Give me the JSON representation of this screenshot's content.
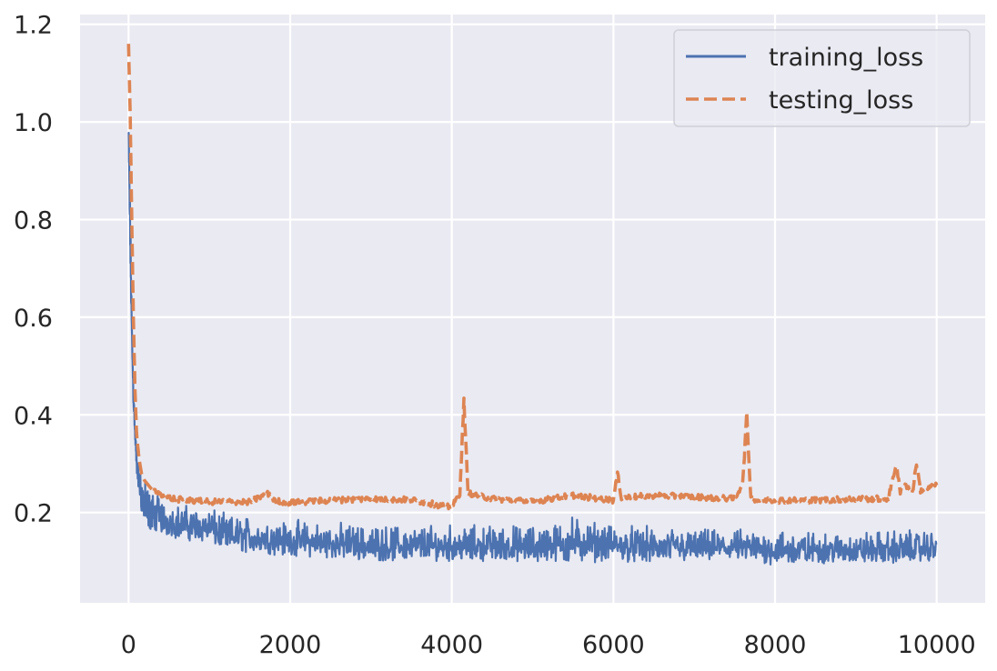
{
  "chart_data": {
    "type": "line",
    "title": "",
    "xlabel": "",
    "ylabel": "",
    "xlim": [
      -600,
      10600
    ],
    "ylim": [
      0.015,
      1.22
    ],
    "x_ticks": [
      0,
      2000,
      4000,
      6000,
      8000,
      10000
    ],
    "x_tick_labels": [
      "0",
      "2000",
      "4000",
      "6000",
      "8000",
      "10000"
    ],
    "y_ticks": [
      0.2,
      0.4,
      0.6,
      0.8,
      1.0,
      1.2
    ],
    "y_tick_labels": [
      "0.2",
      "0.4",
      "0.6",
      "0.8",
      "1.0",
      "1.2"
    ],
    "grid": true,
    "legend_placement": "top-right",
    "background_color": "#eaeaf2",
    "grid_color": "#ffffff",
    "series": [
      {
        "name": "training_loss",
        "style": "solid",
        "color": "#4c72b0",
        "x": [
          0,
          20,
          40,
          60,
          80,
          100,
          130,
          160,
          200,
          250,
          300,
          400,
          500,
          600,
          800,
          1000,
          1200,
          1500,
          2000,
          2500,
          3000,
          3500,
          4000,
          4500,
          5000,
          5500,
          6000,
          6500,
          7000,
          7500,
          8000,
          8500,
          9000,
          9500,
          10000
        ],
        "y_low": [
          0.95,
          0.72,
          0.55,
          0.42,
          0.34,
          0.28,
          0.24,
          0.2,
          0.18,
          0.165,
          0.16,
          0.155,
          0.15,
          0.145,
          0.14,
          0.135,
          0.12,
          0.115,
          0.11,
          0.105,
          0.1,
          0.1,
          0.1,
          0.1,
          0.095,
          0.095,
          0.1,
          0.095,
          0.1,
          0.1,
          0.09,
          0.095,
          0.095,
          0.095,
          0.1
        ],
        "y_high": [
          1.02,
          0.85,
          0.62,
          0.48,
          0.4,
          0.33,
          0.3,
          0.28,
          0.27,
          0.26,
          0.25,
          0.24,
          0.23,
          0.225,
          0.22,
          0.22,
          0.2,
          0.2,
          0.19,
          0.185,
          0.18,
          0.18,
          0.18,
          0.18,
          0.18,
          0.2,
          0.18,
          0.175,
          0.17,
          0.17,
          0.175,
          0.165,
          0.165,
          0.17,
          0.17
        ]
      },
      {
        "name": "testing_loss",
        "style": "dashed",
        "color": "#dd8452",
        "x": [
          0,
          20,
          40,
          60,
          80,
          100,
          130,
          160,
          200,
          250,
          300,
          400,
          500,
          700,
          1000,
          1500,
          1750,
          1800,
          2000,
          2500,
          3000,
          3500,
          4000,
          4100,
          4150,
          4200,
          4500,
          5000,
          5500,
          6000,
          6050,
          6100,
          6500,
          7000,
          7500,
          7600,
          7650,
          7700,
          7750,
          8000,
          8500,
          9000,
          9400,
          9500,
          9550,
          9600,
          9700,
          9750,
          9800,
          10000
        ],
        "y": [
          1.16,
          1.02,
          0.8,
          0.6,
          0.45,
          0.36,
          0.31,
          0.28,
          0.265,
          0.255,
          0.245,
          0.235,
          0.23,
          0.225,
          0.222,
          0.222,
          0.24,
          0.225,
          0.22,
          0.225,
          0.228,
          0.226,
          0.21,
          0.24,
          0.43,
          0.24,
          0.228,
          0.222,
          0.235,
          0.225,
          0.28,
          0.23,
          0.235,
          0.232,
          0.228,
          0.26,
          0.4,
          0.23,
          0.225,
          0.225,
          0.225,
          0.228,
          0.228,
          0.3,
          0.24,
          0.26,
          0.24,
          0.3,
          0.245,
          0.255
        ]
      }
    ]
  }
}
